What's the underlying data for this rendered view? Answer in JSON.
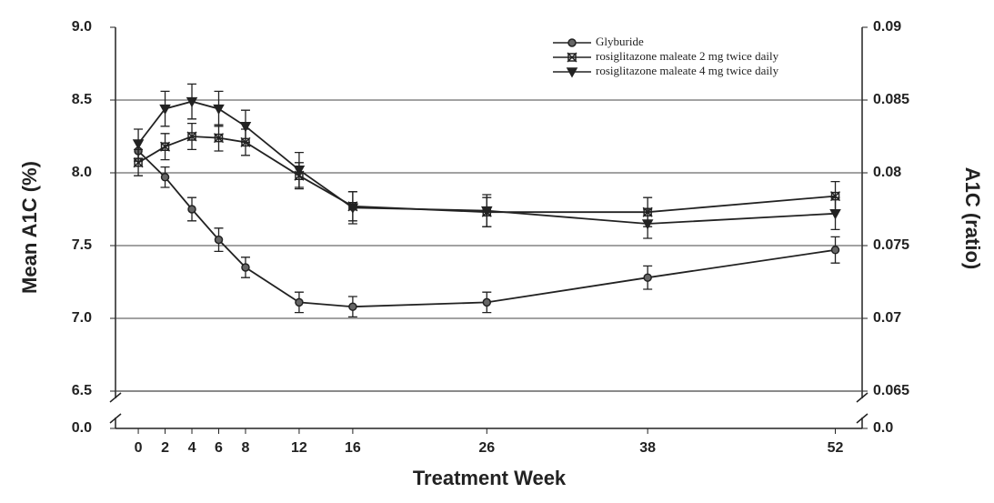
{
  "chart_data": {
    "type": "line",
    "x_label": "Treatment Week",
    "y_label": "Mean A1C (%)",
    "y2_label": "A1C (ratio)",
    "x": [
      0,
      2,
      4,
      6,
      8,
      12,
      16,
      26,
      38,
      52
    ],
    "xlim": [
      -1.7,
      54
    ],
    "xticks": [
      0,
      2,
      4,
      6,
      8,
      12,
      16,
      26,
      38,
      52
    ],
    "ylim": [
      6.5,
      9.0
    ],
    "yticks": [
      {
        "value": 9.0,
        "label": "9.0"
      },
      8.5,
      {
        "value": 8.0,
        "label": "8.0"
      },
      7.5,
      {
        "value": 7.0,
        "label": "7.0"
      },
      6.5,
      {
        "value": 0,
        "label": "0.0"
      }
    ],
    "y2lim": [
      0.065,
      0.09
    ],
    "y2ticks": [
      0.09,
      0.085,
      0.08,
      0.075,
      0.07,
      0.065,
      {
        "value": 0,
        "label": "0.0"
      }
    ],
    "broken_axis": true,
    "grid": true,
    "legend": "top-right",
    "series": [
      {
        "name": "Glyburide",
        "color": "#222222",
        "marker": "circle",
        "values": [
          8.15,
          7.97,
          7.75,
          7.54,
          7.35,
          7.11,
          7.08,
          7.11,
          7.28,
          7.47
        ],
        "errors": [
          0.07,
          0.07,
          0.08,
          0.08,
          0.07,
          0.07,
          0.07,
          0.07,
          0.08,
          0.09
        ]
      },
      {
        "name": "rosiglitazone maleate 2 mg twice daily",
        "color": "#222222",
        "marker": "square",
        "values": [
          8.07,
          8.18,
          8.25,
          8.24,
          8.21,
          7.98,
          7.77,
          7.73,
          7.73,
          7.84
        ],
        "errors": [
          0.09,
          0.09,
          0.09,
          0.09,
          0.09,
          0.09,
          0.1,
          0.1,
          0.1,
          0.1
        ]
      },
      {
        "name": "rosiglitazone maleate 4 mg twice daily",
        "color": "#222222",
        "marker": "triangle",
        "values": [
          8.2,
          8.44,
          8.49,
          8.44,
          8.32,
          8.02,
          7.76,
          7.74,
          7.65,
          7.72
        ],
        "errors": [
          0.1,
          0.12,
          0.12,
          0.12,
          0.11,
          0.12,
          0.11,
          0.11,
          0.1,
          0.11
        ]
      }
    ]
  }
}
